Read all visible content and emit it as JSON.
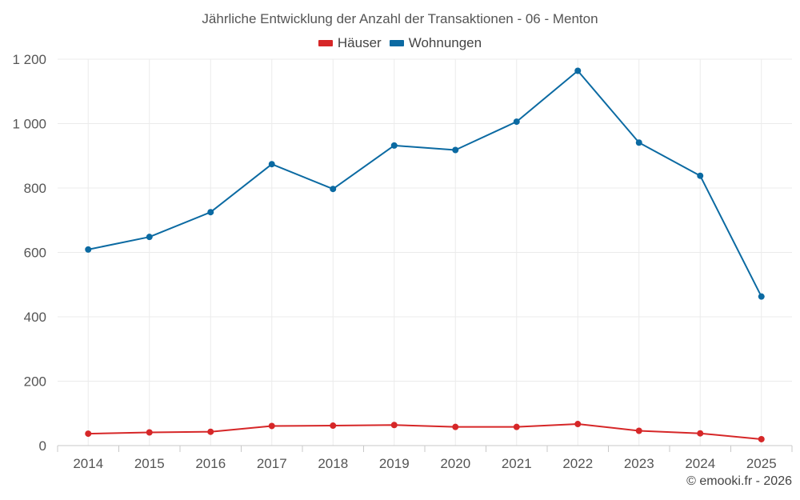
{
  "chart_data": {
    "type": "line",
    "title": "Jährliche Entwicklung der Anzahl der Transaktionen - 06 - Menton",
    "categories": [
      "2014",
      "2015",
      "2016",
      "2017",
      "2018",
      "2019",
      "2020",
      "2021",
      "2022",
      "2023",
      "2024",
      "2025"
    ],
    "series": [
      {
        "name": "Häuser",
        "color": "#d62728",
        "values": [
          37,
          41,
          43,
          61,
          62,
          64,
          58,
          58,
          67,
          46,
          38,
          20
        ]
      },
      {
        "name": "Wohnungen",
        "color": "#0b6aa2",
        "values": [
          609,
          648,
          725,
          874,
          797,
          932,
          918,
          1006,
          1164,
          941,
          838,
          463
        ]
      }
    ],
    "y_ticks": [
      "0",
      "200",
      "400",
      "600",
      "800",
      "1 000",
      "1 200"
    ],
    "y_tick_values": [
      0,
      200,
      400,
      600,
      800,
      1000,
      1200
    ],
    "ylim": [
      0,
      1200
    ],
    "xlabel": "",
    "ylabel": "",
    "grid": true,
    "legend_position": "top-center"
  },
  "footer": {
    "credit": "© emooki.fr - 2026"
  }
}
